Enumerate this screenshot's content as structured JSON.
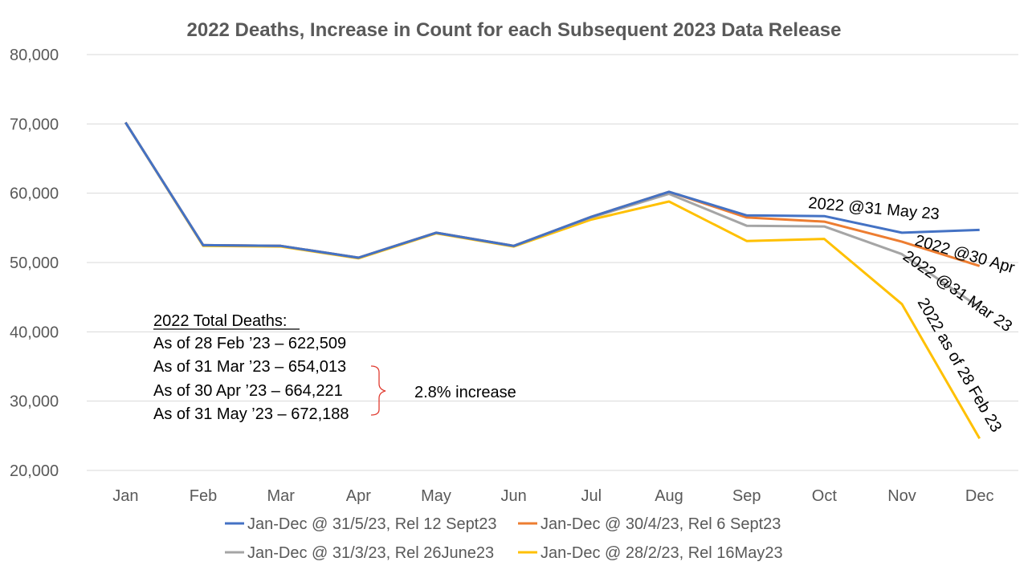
{
  "chart_data": {
    "type": "line",
    "title": "2022 Deaths, Increase in Count for each Subsequent 2023 Data Release",
    "xlabel": "",
    "ylabel": "",
    "categories": [
      "Jan",
      "Feb",
      "Mar",
      "Apr",
      "May",
      "Jun",
      "Jul",
      "Aug",
      "Sep",
      "Oct",
      "Nov",
      "Dec"
    ],
    "ylim": [
      20000,
      80000
    ],
    "yticks": [
      20000,
      30000,
      40000,
      50000,
      60000,
      70000,
      80000
    ],
    "ytick_labels": [
      "20,000",
      "30,000",
      "40,000",
      "50,000",
      "60,000",
      "70,000",
      "80,000"
    ],
    "grid": true,
    "legend_position": "bottom",
    "series": [
      {
        "name": "Jan-Dec @ 31/5/23, Rel 12 Sept23",
        "color": "#4472c4",
        "values": [
          70200,
          52500,
          52400,
          50700,
          54300,
          52400,
          56600,
          60200,
          56800,
          56700,
          54300,
          54700
        ]
      },
      {
        "name": "Jan-Dec @ 30/4/23, Rel 6 Sept23",
        "color": "#ed7d31",
        "values": [
          70200,
          52500,
          52400,
          50700,
          54300,
          52400,
          56600,
          60200,
          56500,
          55900,
          53000,
          49500
        ]
      },
      {
        "name": "Jan-Dec @ 31/3/23, Rel 26June23",
        "color": "#a5a5a5",
        "values": [
          70200,
          52500,
          52400,
          50700,
          54300,
          52400,
          56500,
          59900,
          55300,
          55200,
          51200,
          43500
        ]
      },
      {
        "name": "Jan-Dec @ 28/2/23, Rel 16May23",
        "color": "#ffc000",
        "values": [
          70200,
          52400,
          52300,
          50600,
          54200,
          52300,
          56200,
          58800,
          53100,
          53400,
          44000,
          24600
        ]
      }
    ],
    "line_labels": [
      "2022 @31 May 23",
      "2022 @30 Apr",
      "2022 @31 Mar 23",
      "2022 as of 28 Feb 23"
    ],
    "annotations": {
      "heading": "2022 Total Deaths:",
      "rows": [
        "As of 28 Feb ’23 – 622,509",
        "As of 31 Mar ’23 – 654,013",
        "As of 30 Apr ’23 – 664,221",
        "As of 31 May ’23 – 672,188"
      ],
      "bracket_color": "#e03c31",
      "increase": "2.8% increase"
    }
  }
}
